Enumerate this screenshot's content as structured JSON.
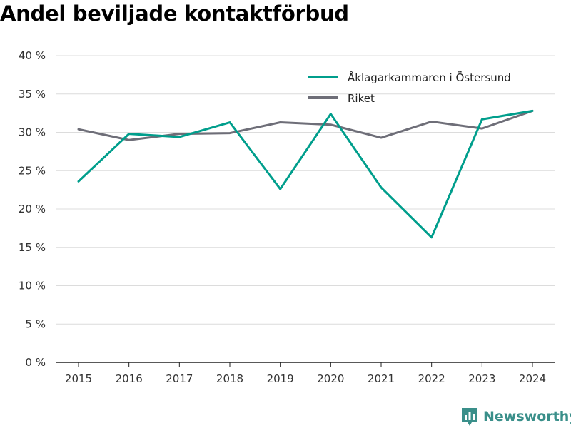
{
  "chart_data": {
    "type": "line",
    "title": "Andel beviljade kontaktförbud",
    "xlabel": "",
    "ylabel": "",
    "categories": [
      "2015",
      "2016",
      "2017",
      "2018",
      "2019",
      "2020",
      "2021",
      "2022",
      "2023",
      "2024"
    ],
    "ylim": [
      0,
      40
    ],
    "yticks": [
      0,
      5,
      10,
      15,
      20,
      25,
      30,
      35,
      40
    ],
    "ytick_labels": [
      "0 %",
      "5 %",
      "10 %",
      "15 %",
      "20 %",
      "25 %",
      "30 %",
      "35 %",
      "40 %"
    ],
    "grid": true,
    "legend_position": "top-right",
    "series": [
      {
        "name": "Åklagarkammaren i Östersund",
        "color": "#009e8c",
        "values": [
          23.6,
          29.8,
          29.4,
          31.3,
          22.6,
          32.4,
          22.8,
          16.3,
          31.7,
          32.8
        ]
      },
      {
        "name": "Riket",
        "color": "#6e6e78",
        "values": [
          30.4,
          29.0,
          29.8,
          29.9,
          31.3,
          31.0,
          29.3,
          31.4,
          30.5,
          32.8
        ]
      }
    ]
  },
  "brand": {
    "name": "Newsworthy",
    "icon": "bar-chart-badge-icon",
    "color": "#3a8f8a"
  }
}
